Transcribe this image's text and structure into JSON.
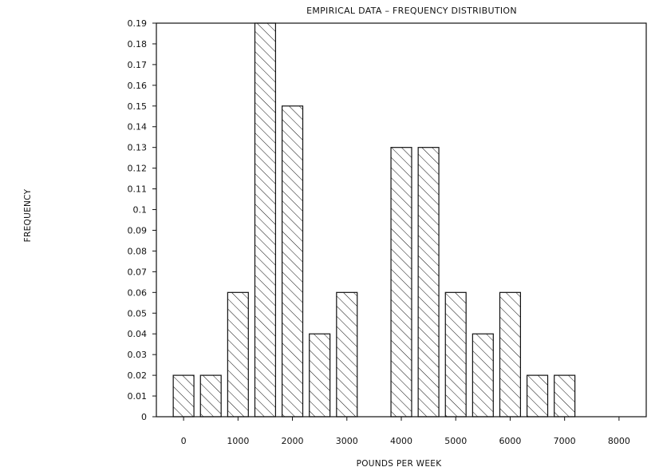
{
  "chart_data": {
    "type": "bar",
    "title": "EMPIRICAL DATA – FREQUENCY DISTRIBUTION",
    "xlabel": "POUNDS PER WEEK",
    "ylabel": "FREQUENCY",
    "xlim": [
      -500,
      8500
    ],
    "ylim": [
      0,
      0.19
    ],
    "x_ticks": [
      0,
      1000,
      2000,
      3000,
      4000,
      5000,
      6000,
      7000,
      8000
    ],
    "x_tick_labels": [
      "0",
      "1000",
      "2000",
      "3000",
      "4000",
      "5000",
      "6000",
      "7000",
      "8000"
    ],
    "y_ticks": [
      0,
      0.01,
      0.02,
      0.03,
      0.04,
      0.05,
      0.06,
      0.07,
      0.08,
      0.09,
      0.1,
      0.11,
      0.12,
      0.13,
      0.14,
      0.15,
      0.16,
      0.17,
      0.18,
      0.19
    ],
    "y_tick_labels": [
      "0",
      "0.01",
      "0.02",
      "0.03",
      "0.04",
      "0.05",
      "0.06",
      "0.07",
      "0.08",
      "0.09",
      "0.1",
      "0.11",
      "0.12",
      "0.13",
      "0.14",
      "0.15",
      "0.16",
      "0.17",
      "0.18",
      "0.19"
    ],
    "bin_width": 500,
    "x": [
      0,
      500,
      1000,
      1500,
      2000,
      2500,
      3000,
      3500,
      4000,
      4500,
      5000,
      5500,
      6000,
      6500,
      7000,
      7500
    ],
    "values": [
      0.02,
      0.02,
      0.06,
      0.19,
      0.15,
      0.04,
      0.06,
      0,
      0.13,
      0.13,
      0.06,
      0.04,
      0.06,
      0.02,
      0.02,
      0
    ],
    "fill_pattern": "diagonal-hatch",
    "grid": false,
    "legend": "none",
    "colors": {
      "ink": "#111111",
      "background": "#ffffff"
    }
  }
}
